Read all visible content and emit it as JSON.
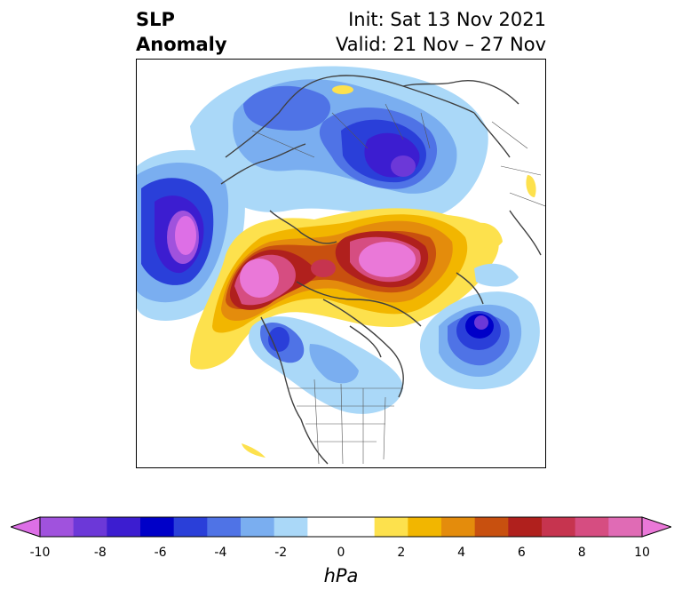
{
  "title": {
    "line1": "SLP",
    "line2": "Anomaly"
  },
  "init": "Init: Sat 13 Nov 2021",
  "valid": "Valid: 21 Nov – 27 Nov",
  "colorbar": {
    "units": "hPa",
    "tick_labels": [
      "-10",
      "-8",
      "-6",
      "-4",
      "-2",
      "0",
      "2",
      "4",
      "6",
      "8",
      "10"
    ],
    "colors": [
      "#dd6fe6",
      "#a052dd",
      "#6c38d8",
      "#3c1dd0",
      "#0000c8",
      "#2a3fd9",
      "#4f73e6",
      "#7aaef0",
      "#aad8f8",
      "#ffffff",
      "#ffffff",
      "#fde14d",
      "#f2b600",
      "#e48c0c",
      "#c8500f",
      "#b0201d",
      "#c6344f",
      "#d64d81",
      "#e06bb5",
      "#ea78d8"
    ]
  },
  "map": {
    "centers": [
      {
        "name": "north-pacific-low",
        "sign": "negative"
      },
      {
        "name": "siberia-low",
        "sign": "negative"
      },
      {
        "name": "north-atlantic-low",
        "sign": "negative"
      },
      {
        "name": "alaska-high",
        "sign": "positive"
      },
      {
        "name": "arctic-high",
        "sign": "positive"
      }
    ]
  }
}
